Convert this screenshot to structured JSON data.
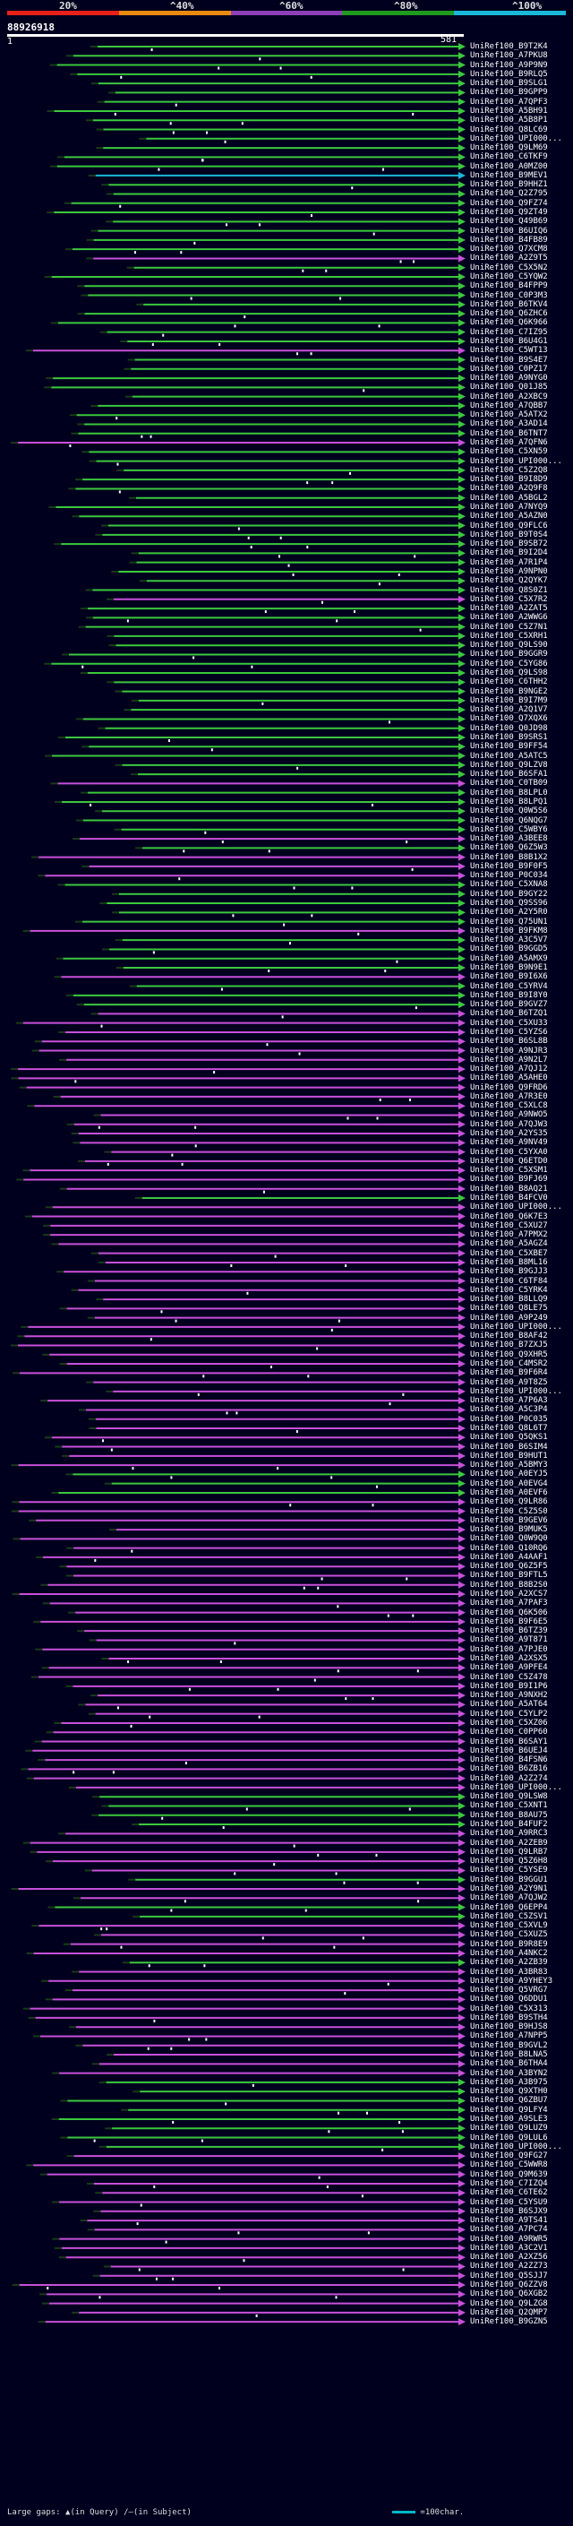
{
  "scale": {
    "ticks": [
      "20%",
      "^40%",
      "^60%",
      "^80%",
      "^100%"
    ],
    "colors": [
      "#e8201a",
      "#e88a10",
      "#8d3fb8",
      "#1e9a1e",
      "#1ab8d8"
    ]
  },
  "query": {
    "id": "88926918",
    "start": "1",
    "end": "581"
  },
  "hits": [
    {
      "label": "UniRef100_B9T2K4",
      "c": "g"
    },
    {
      "label": "UniRef100_A7PKU8",
      "c": "g"
    },
    {
      "label": "UniRef100_A9P9N9",
      "c": "g"
    },
    {
      "label": "UniRef100_B9RLQ5",
      "c": "g"
    },
    {
      "label": "UniRef100_B9SLG1",
      "c": "g"
    },
    {
      "label": "UniRef100_B9GPP9",
      "c": "g"
    },
    {
      "label": "UniRef100_A7QPF3",
      "c": "g"
    },
    {
      "label": "UniRef100_A5BH91",
      "c": "g"
    },
    {
      "label": "UniRef100_A5B8P1",
      "c": "g"
    },
    {
      "label": "UniRef100_Q8LC69",
      "c": "g"
    },
    {
      "label": "UniRef100_UPI000...",
      "c": "g"
    },
    {
      "label": "UniRef100_Q9LM69",
      "c": "g"
    },
    {
      "label": "UniRef100_C6TKF9",
      "c": "g"
    },
    {
      "label": "UniRef100_A0MZ00",
      "c": "g"
    },
    {
      "label": "UniRef100_B9MEV1",
      "c": "c"
    },
    {
      "label": "UniRef100_B9HHZ1",
      "c": "g"
    },
    {
      "label": "UniRef100_Q2Z795",
      "c": "g"
    },
    {
      "label": "UniRef100_Q9FZ74",
      "c": "g"
    },
    {
      "label": "UniRef100_Q9ZT49",
      "c": "g"
    },
    {
      "label": "UniRef100_Q49B69",
      "c": "g"
    },
    {
      "label": "UniRef100_B6UIQ6",
      "c": "g"
    },
    {
      "label": "UniRef100_B4FB89",
      "c": "g"
    },
    {
      "label": "UniRef100_Q7XCM8",
      "c": "g"
    },
    {
      "label": "UniRef100_A2Z9T5",
      "c": "m"
    },
    {
      "label": "UniRef100_C5X5N2",
      "c": "g"
    },
    {
      "label": "UniRef100_C5YQW2",
      "c": "g"
    },
    {
      "label": "UniRef100_B4FPP9",
      "c": "g"
    },
    {
      "label": "UniRef100_C0P3M3",
      "c": "g"
    },
    {
      "label": "UniRef100_B6TKV4",
      "c": "g"
    },
    {
      "label": "UniRef100_Q6ZHC6",
      "c": "g"
    },
    {
      "label": "UniRef100_Q6K966",
      "c": "g"
    },
    {
      "label": "UniRef100_C7IZ95",
      "c": "g"
    },
    {
      "label": "UniRef100_B6U4G1",
      "c": "g"
    },
    {
      "label": "UniRef100_C5WT13",
      "c": "m"
    },
    {
      "label": "UniRef100_B9S4E7",
      "c": "g"
    },
    {
      "label": "UniRef100_C0PZ17",
      "c": "g"
    },
    {
      "label": "UniRef100_A9NYG0",
      "c": "g"
    },
    {
      "label": "UniRef100_Q01J85",
      "c": "g"
    },
    {
      "label": "UniRef100_A2XBC9",
      "c": "g"
    },
    {
      "label": "UniRef100_A7QBB7",
      "c": "g"
    },
    {
      "label": "UniRef100_A5ATX2",
      "c": "g"
    },
    {
      "label": "UniRef100_A3AD14",
      "c": "g"
    },
    {
      "label": "UniRef100_B6TNT7",
      "c": "g"
    },
    {
      "label": "UniRef100_A7QFN6",
      "c": "m"
    },
    {
      "label": "UniRef100_C5XN59",
      "c": "g"
    },
    {
      "label": "UniRef100_UPI000...",
      "c": "g"
    },
    {
      "label": "UniRef100_C5Z2Q8",
      "c": "g"
    },
    {
      "label": "UniRef100_B9I8D9",
      "c": "g"
    },
    {
      "label": "UniRef100_A2Q9F8",
      "c": "g"
    },
    {
      "label": "UniRef100_A5BGL2",
      "c": "g"
    },
    {
      "label": "UniRef100_A7NYQ9",
      "c": "g"
    },
    {
      "label": "UniRef100_A5AZN0",
      "c": "g"
    },
    {
      "label": "UniRef100_Q9FLC6",
      "c": "g"
    },
    {
      "label": "UniRef100_B9T0S4",
      "c": "g"
    },
    {
      "label": "UniRef100_B9SB72",
      "c": "g"
    },
    {
      "label": "UniRef100_B9I2D4",
      "c": "g"
    },
    {
      "label": "UniRef100_A7R1P4",
      "c": "g"
    },
    {
      "label": "UniRef100_A9NPN0",
      "c": "g"
    },
    {
      "label": "UniRef100_Q2QYK7",
      "c": "g"
    },
    {
      "label": "UniRef100_Q8S0Z1",
      "c": "g"
    },
    {
      "label": "UniRef100_C5X7R2",
      "c": "m"
    },
    {
      "label": "UniRef100_A2ZAT5",
      "c": "g"
    },
    {
      "label": "UniRef100_A2WWG6",
      "c": "g"
    },
    {
      "label": "UniRef100_C5Z7N1",
      "c": "g"
    },
    {
      "label": "UniRef100_C5XRH1",
      "c": "g"
    },
    {
      "label": "UniRef100_Q9LS90",
      "c": "g"
    },
    {
      "label": "UniRef100_B9GGR9",
      "c": "g"
    },
    {
      "label": "UniRef100_C5YG86",
      "c": "g"
    },
    {
      "label": "UniRef100_Q9LS98",
      "c": "g"
    },
    {
      "label": "UniRef100_C6THH2",
      "c": "g"
    },
    {
      "label": "UniRef100_B9NGE2",
      "c": "g"
    },
    {
      "label": "UniRef100_B9I7M9",
      "c": "g"
    },
    {
      "label": "UniRef100_A2Q1V7",
      "c": "g"
    },
    {
      "label": "UniRef100_Q7XQX6",
      "c": "g"
    },
    {
      "label": "UniRef100_Q0JD98",
      "c": "g"
    },
    {
      "label": "UniRef100_B9SRS1",
      "c": "g"
    },
    {
      "label": "UniRef100_B9FF54",
      "c": "g"
    },
    {
      "label": "UniRef100_A5ATC5",
      "c": "g"
    },
    {
      "label": "UniRef100_Q9LZV8",
      "c": "g"
    },
    {
      "label": "UniRef100_B6SFA1",
      "c": "g"
    },
    {
      "label": "UniRef100_C0TB09",
      "c": "m"
    },
    {
      "label": "UniRef100_B8LPL0",
      "c": "g"
    },
    {
      "label": "UniRef100_B8LPQ1",
      "c": "g"
    },
    {
      "label": "UniRef100_Q0W5S6",
      "c": "g"
    },
    {
      "label": "UniRef100_Q6NQG7",
      "c": "g"
    },
    {
      "label": "UniRef100_C5WBY6",
      "c": "g"
    },
    {
      "label": "UniRef100_A3BEE8",
      "c": "m"
    },
    {
      "label": "UniRef100_Q6Z5W3",
      "c": "g"
    },
    {
      "label": "UniRef100_B8B1X2",
      "c": "m"
    },
    {
      "label": "UniRef100_B9F0F5",
      "c": "m"
    },
    {
      "label": "UniRef100_P0C034",
      "c": "m"
    },
    {
      "label": "UniRef100_C5XNA8",
      "c": "g"
    },
    {
      "label": "UniRef100_B9GY22",
      "c": "g"
    },
    {
      "label": "UniRef100_Q9SS96",
      "c": "g"
    },
    {
      "label": "UniRef100_A2Y5R0",
      "c": "g"
    },
    {
      "label": "UniRef100_Q75UN1",
      "c": "g"
    },
    {
      "label": "UniRef100_B9FKM8",
      "c": "m"
    },
    {
      "label": "UniRef100_A3C5V7",
      "c": "g"
    },
    {
      "label": "UniRef100_B9GGD5",
      "c": "g"
    },
    {
      "label": "UniRef100_A5AMX9",
      "c": "g"
    },
    {
      "label": "UniRef100_B9N9E1",
      "c": "g"
    },
    {
      "label": "UniRef100_B9I6X6",
      "c": "m"
    },
    {
      "label": "UniRef100_C5YRV4",
      "c": "g"
    },
    {
      "label": "UniRef100_B9I8Y0",
      "c": "g"
    },
    {
      "label": "UniRef100_B9GVZ7",
      "c": "g"
    },
    {
      "label": "UniRef100_B6TZQ1",
      "c": "m"
    },
    {
      "label": "UniRef100_C5XU33",
      "c": "m"
    },
    {
      "label": "UniRef100_C5YZS6",
      "c": "m"
    },
    {
      "label": "UniRef100_B6SL8B",
      "c": "m"
    },
    {
      "label": "UniRef100_A9NJR3",
      "c": "m"
    },
    {
      "label": "UniRef100_A9N2L7",
      "c": "m"
    },
    {
      "label": "UniRef100_A7QJ12",
      "c": "m"
    },
    {
      "label": "UniRef100_A5AHE0",
      "c": "m"
    },
    {
      "label": "UniRef100_Q9FRD6",
      "c": "m"
    },
    {
      "label": "UniRef100_A7R3E0",
      "c": "m"
    },
    {
      "label": "UniRef100_C5XLC8",
      "c": "m"
    },
    {
      "label": "UniRef100_A9NWO5",
      "c": "m"
    },
    {
      "label": "UniRef100_A7QJW3",
      "c": "m"
    },
    {
      "label": "UniRef100_A2YS35",
      "c": "m"
    },
    {
      "label": "UniRef100_A9NV49",
      "c": "m"
    },
    {
      "label": "UniRef100_C5YXA0",
      "c": "m"
    },
    {
      "label": "UniRef100_Q6ETD0",
      "c": "m"
    },
    {
      "label": "UniRef100_C5XSM1",
      "c": "m"
    },
    {
      "label": "UniRef100_B9FJ69",
      "c": "m"
    },
    {
      "label": "UniRef100_B8AQ21",
      "c": "m"
    },
    {
      "label": "UniRef100_B4FCV0",
      "c": "g"
    },
    {
      "label": "UniRef100_UPI000...",
      "c": "m"
    },
    {
      "label": "UniRef100_Q6K7E3",
      "c": "m"
    },
    {
      "label": "UniRef100_C5XU27",
      "c": "m"
    },
    {
      "label": "UniRef100_A7PMX2",
      "c": "m"
    },
    {
      "label": "UniRef100_A5AGZ4",
      "c": "m"
    },
    {
      "label": "UniRef100_C5XBE7",
      "c": "m"
    },
    {
      "label": "UniRef100_B8ML16",
      "c": "m"
    },
    {
      "label": "UniRef100_B9GJJ3",
      "c": "m"
    },
    {
      "label": "UniRef100_C6TF84",
      "c": "m"
    },
    {
      "label": "UniRef100_C5YRK4",
      "c": "m"
    },
    {
      "label": "UniRef100_B8LLQ9",
      "c": "m"
    },
    {
      "label": "UniRef100_Q8LE75",
      "c": "m"
    },
    {
      "label": "UniRef100_A9P249",
      "c": "m"
    },
    {
      "label": "UniRef100_UPI000...",
      "c": "m"
    },
    {
      "label": "UniRef100_B8AF42",
      "c": "m"
    },
    {
      "label": "UniRef100_B7ZXJ5",
      "c": "m"
    },
    {
      "label": "UniRef100_Q9XHR5",
      "c": "m"
    },
    {
      "label": "UniRef100_C4MSR2",
      "c": "m"
    },
    {
      "label": "UniRef100_B9F6R4",
      "c": "m"
    },
    {
      "label": "UniRef100_A9T8Z5",
      "c": "m"
    },
    {
      "label": "UniRef100_UPI000...",
      "c": "m"
    },
    {
      "label": "UniRef100_A7P6A3",
      "c": "m"
    },
    {
      "label": "UniRef100_A5C3P4",
      "c": "m"
    },
    {
      "label": "UniRef100_P0C035",
      "c": "m"
    },
    {
      "label": "UniRef100_Q8L6T7",
      "c": "m"
    },
    {
      "label": "UniRef100_Q5QKS1",
      "c": "m"
    },
    {
      "label": "UniRef100_B6SIM4",
      "c": "m"
    },
    {
      "label": "UniRef100_B9HUT1",
      "c": "m"
    },
    {
      "label": "UniRef100_A5BMY3",
      "c": "m"
    },
    {
      "label": "UniRef100_A0EYJ5",
      "c": "g"
    },
    {
      "label": "UniRef100_A0EVG4",
      "c": "g"
    },
    {
      "label": "UniRef100_A0EVF6",
      "c": "g"
    },
    {
      "label": "UniRef100_Q9LR86",
      "c": "m"
    },
    {
      "label": "UniRef100_C5Z5S0",
      "c": "m"
    },
    {
      "label": "UniRef100_B9GEV6",
      "c": "m"
    },
    {
      "label": "UniRef100_B9MUK5",
      "c": "m"
    },
    {
      "label": "UniRef100_Q0W9Q0",
      "c": "m"
    },
    {
      "label": "UniRef100_Q10RQ6",
      "c": "m"
    },
    {
      "label": "UniRef100_A4AAF1",
      "c": "m"
    },
    {
      "label": "UniRef100_Q6Z5F5",
      "c": "m"
    },
    {
      "label": "UniRef100_B9FTL5",
      "c": "m"
    },
    {
      "label": "UniRef100_B8B2S0",
      "c": "m"
    },
    {
      "label": "UniRef100_A2XCS7",
      "c": "m"
    },
    {
      "label": "UniRef100_A7PAF3",
      "c": "m"
    },
    {
      "label": "UniRef100_Q6K506",
      "c": "m"
    },
    {
      "label": "UniRef100_B9F6E5",
      "c": "m"
    },
    {
      "label": "UniRef100_B6TZ39",
      "c": "m"
    },
    {
      "label": "UniRef100_A9T871",
      "c": "m"
    },
    {
      "label": "UniRef100_A7PJE0",
      "c": "m"
    },
    {
      "label": "UniRef100_A2XSX5",
      "c": "m"
    },
    {
      "label": "UniRef100_A9PFE4",
      "c": "m"
    },
    {
      "label": "UniRef100_C5Z478",
      "c": "m"
    },
    {
      "label": "UniRef100_B9I1P6",
      "c": "m"
    },
    {
      "label": "UniRef100_A9NXH2",
      "c": "m"
    },
    {
      "label": "UniRef100_A5AT64",
      "c": "m"
    },
    {
      "label": "UniRef100_C5YLP2",
      "c": "m"
    },
    {
      "label": "UniRef100_C5XZ06",
      "c": "m"
    },
    {
      "label": "UniRef100_C0PP60",
      "c": "m"
    },
    {
      "label": "UniRef100_B6SAY1",
      "c": "m"
    },
    {
      "label": "UniRef100_B6UEJ4",
      "c": "m"
    },
    {
      "label": "UniRef100_B4FSN6",
      "c": "m"
    },
    {
      "label": "UniRef100_B6ZB16",
      "c": "m"
    },
    {
      "label": "UniRef100_A2Z274",
      "c": "m"
    },
    {
      "label": "UniRef100_UPI000...",
      "c": "m"
    },
    {
      "label": "UniRef100_Q9LSW8",
      "c": "g"
    },
    {
      "label": "UniRef100_C5XNT1",
      "c": "g"
    },
    {
      "label": "UniRef100_B8AU75",
      "c": "g"
    },
    {
      "label": "UniRef100_B4FUF2",
      "c": "g"
    },
    {
      "label": "UniRef100_A9RRC3",
      "c": "m"
    },
    {
      "label": "UniRef100_A2ZEB9",
      "c": "m"
    },
    {
      "label": "UniRef100_Q9LRB7",
      "c": "m"
    },
    {
      "label": "UniRef100_Q5Z6H8",
      "c": "m"
    },
    {
      "label": "UniRef100_C5YSE9",
      "c": "m"
    },
    {
      "label": "UniRef100_B9GGU1",
      "c": "g"
    },
    {
      "label": "UniRef100_A2Y9N1",
      "c": "m"
    },
    {
      "label": "UniRef100_A7QJW2",
      "c": "m"
    },
    {
      "label": "UniRef100_Q6EPP4",
      "c": "g"
    },
    {
      "label": "UniRef100_C5ZSV1",
      "c": "g"
    },
    {
      "label": "UniRef100_C5XVL9",
      "c": "m"
    },
    {
      "label": "UniRef100_C5XUZ5",
      "c": "m"
    },
    {
      "label": "UniRef100_B9R8E9",
      "c": "m"
    },
    {
      "label": "UniRef100_A4NKC2",
      "c": "m"
    },
    {
      "label": "UniRef100_A2ZB39",
      "c": "g"
    },
    {
      "label": "UniRef100_A3BR83",
      "c": "m"
    },
    {
      "label": "UniRef100_A9YHEY3",
      "c": "m"
    },
    {
      "label": "UniRef100_Q5VRG7",
      "c": "m"
    },
    {
      "label": "UniRef100_Q6DDU1",
      "c": "m"
    },
    {
      "label": "UniRef100_C5X313",
      "c": "m"
    },
    {
      "label": "UniRef100_B9STH4",
      "c": "m"
    },
    {
      "label": "UniRef100_B9HJS8",
      "c": "m"
    },
    {
      "label": "UniRef100_A7NPP5",
      "c": "m"
    },
    {
      "label": "UniRef100_B9GVL2",
      "c": "m"
    },
    {
      "label": "UniRef100_B8LNA5",
      "c": "m"
    },
    {
      "label": "UniRef100_B6THA4",
      "c": "m"
    },
    {
      "label": "UniRef100_A3BYN2",
      "c": "m"
    },
    {
      "label": "UniRef100_A3B975",
      "c": "g"
    },
    {
      "label": "UniRef100_Q9XTH0",
      "c": "g"
    },
    {
      "label": "UniRef100_Q6ZBU7",
      "c": "g"
    },
    {
      "label": "UniRef100_Q9LFY4",
      "c": "g"
    },
    {
      "label": "UniRef100_A9SLE3",
      "c": "g"
    },
    {
      "label": "UniRef100_Q9LUZ9",
      "c": "g"
    },
    {
      "label": "UniRef100_Q9LUL6",
      "c": "g"
    },
    {
      "label": "UniRef100_UPI000...",
      "c": "g"
    },
    {
      "label": "UniRef100_Q9FG27",
      "c": "m"
    },
    {
      "label": "UniRef100_C5WWR8",
      "c": "m"
    },
    {
      "label": "UniRef100_Q9M639",
      "c": "m"
    },
    {
      "label": "UniRef100_C7IZQ4",
      "c": "m"
    },
    {
      "label": "UniRef100_C6TE62",
      "c": "m"
    },
    {
      "label": "UniRef100_C5YSU9",
      "c": "m"
    },
    {
      "label": "UniRef100_B6SJX9",
      "c": "m"
    },
    {
      "label": "UniRef100_A9TS41",
      "c": "m"
    },
    {
      "label": "UniRef100_A7PC74",
      "c": "m"
    },
    {
      "label": "UniRef100_A9RWR5",
      "c": "m"
    },
    {
      "label": "UniRef100_A3C2V1",
      "c": "m"
    },
    {
      "label": "UniRef100_A2XZ56",
      "c": "m"
    },
    {
      "label": "UniRef100_A2ZZ73",
      "c": "m"
    },
    {
      "label": "UniRef100_Q5SJJ7",
      "c": "m"
    },
    {
      "label": "UniRef100_Q6ZZV8",
      "c": "m"
    },
    {
      "label": "UniRef100_Q6XGB2",
      "c": "m"
    },
    {
      "label": "UniRef100_Q9LZG8",
      "c": "m"
    },
    {
      "label": "UniRef100_Q2QMP7",
      "c": "m"
    },
    {
      "label": "UniRef100_B9GZN5",
      "c": "m"
    }
  ],
  "legend": {
    "gaps_label": "Large gaps:",
    "query_gap": "▲(in Query)",
    "subject_gap": "/—(in Subject)",
    "scale_label": "=100char."
  }
}
